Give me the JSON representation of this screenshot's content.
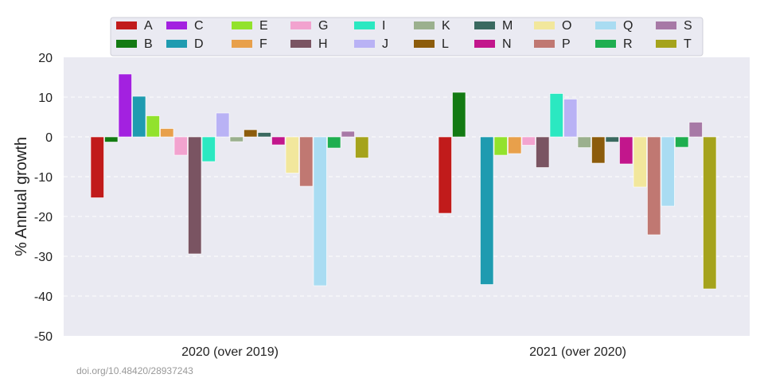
{
  "chart_data": {
    "type": "bar",
    "title": "",
    "xlabel": "",
    "ylabel": "% Annual growth",
    "ylim": [
      -50,
      20
    ],
    "yticks": [
      20,
      10,
      0,
      -10,
      -20,
      -30,
      -40,
      -50
    ],
    "grid": true,
    "legend_position": "top-center",
    "categories": [
      "2020 (over 2019)",
      "2021 (over 2020)"
    ],
    "series": [
      {
        "name": "A",
        "color": "#c11b1b",
        "values": [
          -15.3,
          -19.2
        ]
      },
      {
        "name": "B",
        "color": "#137a13",
        "values": [
          -1.3,
          11.2
        ]
      },
      {
        "name": "C",
        "color": "#a321e0",
        "values": [
          15.8,
          0
        ]
      },
      {
        "name": "D",
        "color": "#1f9bb0",
        "values": [
          10.2,
          -37.1
        ]
      },
      {
        "name": "E",
        "color": "#92e22d",
        "values": [
          5.3,
          -4.6
        ]
      },
      {
        "name": "F",
        "color": "#e8a04b",
        "values": [
          2.1,
          -4.2
        ]
      },
      {
        "name": "G",
        "color": "#f2a3cf",
        "values": [
          -4.6,
          -2.1
        ]
      },
      {
        "name": "H",
        "color": "#7a5462",
        "values": [
          -29.4,
          -7.7
        ]
      },
      {
        "name": "I",
        "color": "#2be8c1",
        "values": [
          -6.2,
          10.9
        ]
      },
      {
        "name": "J",
        "color": "#b9b2f5",
        "values": [
          6.0,
          9.5
        ]
      },
      {
        "name": "K",
        "color": "#9bb08e",
        "values": [
          -1.2,
          -2.7
        ]
      },
      {
        "name": "L",
        "color": "#8c5c0c",
        "values": [
          1.8,
          -6.6
        ]
      },
      {
        "name": "M",
        "color": "#3a6960",
        "values": [
          1.1,
          -1.3
        ]
      },
      {
        "name": "N",
        "color": "#c2168c",
        "values": [
          -2.0,
          -6.8
        ]
      },
      {
        "name": "O",
        "color": "#f2e79c",
        "values": [
          -9.1,
          -12.6
        ]
      },
      {
        "name": "P",
        "color": "#c07872",
        "values": [
          -12.4,
          -24.6
        ]
      },
      {
        "name": "Q",
        "color": "#a9dcf2",
        "values": [
          -37.4,
          -17.4
        ]
      },
      {
        "name": "R",
        "color": "#1fae50",
        "values": [
          -2.8,
          -2.6
        ]
      },
      {
        "name": "S",
        "color": "#a779a6",
        "values": [
          1.4,
          3.7
        ]
      },
      {
        "name": "T",
        "color": "#a5a31c",
        "values": [
          -5.3,
          -38.2
        ]
      }
    ],
    "source_note": "doi.org/10.48420/28937243"
  },
  "colors": {
    "plot_background": "#eaeaf2",
    "grid": "#ffffff"
  }
}
